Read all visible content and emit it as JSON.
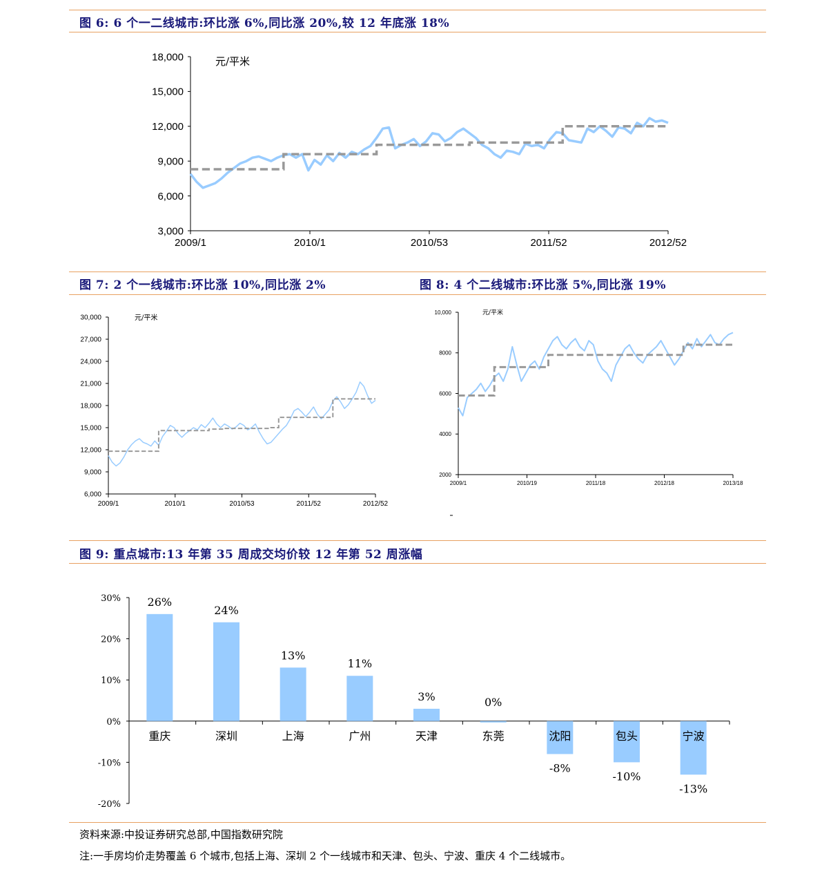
{
  "colors": {
    "series_line": "#99ccff",
    "avg_line": "#999999",
    "bar": "#99ccff",
    "title": "#1a1a7a",
    "rule": "#e8a060"
  },
  "fig6": {
    "title": "图 6: 6 个一二线城市:环比涨 6%,同比涨 20%,较 12 年底涨 18%",
    "unit": "元/平米",
    "chart_data": {
      "type": "line",
      "ylim": [
        3000,
        18000
      ],
      "yticks": [
        "18,000",
        "15,000",
        "12,000",
        "9,000",
        "6,000",
        "3,000"
      ],
      "xticks": [
        "2009/1",
        "2010/1",
        "2010/53",
        "2011/52",
        "2012/52"
      ],
      "series": [
        {
          "values": [
            7900,
            7200,
            6700,
            6900,
            7100,
            7500,
            8000,
            8400,
            8800,
            9000,
            9300,
            9400,
            9200,
            9000,
            9300,
            9500,
            9600,
            9300,
            9600,
            8200,
            9100,
            8700,
            9500,
            9000,
            9700,
            9300,
            9800,
            9600,
            10000,
            10300,
            11000,
            11800,
            11900,
            10100,
            10400,
            10600,
            10900,
            10300,
            10700,
            11400,
            11300,
            10700,
            11000,
            11500,
            11800,
            11400,
            11000,
            10400,
            10100,
            9600,
            9300,
            9900,
            9800,
            9600,
            10500,
            10300,
            10400,
            10100,
            10900,
            11500,
            11400,
            10800,
            10700,
            10600,
            11800,
            11500,
            12000,
            11600,
            11100,
            11900,
            11800,
            11400,
            12300,
            12000,
            12700,
            12400,
            12500,
            12300
          ]
        },
        {
          "values": [
            8300,
            8300,
            8300,
            8300,
            8300,
            8300,
            8300,
            8300,
            8300,
            8300,
            8300,
            8300,
            8300,
            8300,
            8300,
            9600,
            9600,
            9600,
            9600,
            9600,
            9600,
            9600,
            9600,
            9600,
            9600,
            9600,
            9600,
            9600,
            9600,
            9600,
            10400,
            10400,
            10400,
            10400,
            10400,
            10400,
            10400,
            10400,
            10400,
            10400,
            10400,
            10400,
            10400,
            10400,
            10400,
            10600,
            10600,
            10600,
            10600,
            10600,
            10600,
            10600,
            10600,
            10600,
            10600,
            10600,
            10600,
            10600,
            10600,
            10600,
            12000,
            12000,
            12000,
            12000,
            12000,
            12000,
            12000,
            12000,
            12000,
            12000,
            12000,
            12000,
            12000,
            12000,
            12000,
            12000,
            12000,
            12000
          ]
        }
      ]
    }
  },
  "fig7": {
    "title": "图 7: 2 个一线城市:环比涨 10%,同比涨 2%",
    "unit": "元/平米",
    "chart_data": {
      "type": "line",
      "ylim": [
        6000,
        30000
      ],
      "yticks": [
        "30,000",
        "27,000",
        "24,000",
        "21,000",
        "18,000",
        "15,000",
        "12,000",
        "9,000",
        "6,000"
      ],
      "xticks": [
        "2009/1",
        "2010/1",
        "2010/53",
        "2011/52",
        "2012/52"
      ],
      "series": [
        {
          "values": [
            11200,
            10300,
            9800,
            10200,
            11000,
            12000,
            12700,
            13200,
            13500,
            13000,
            12800,
            12500,
            13200,
            12600,
            13800,
            14500,
            15300,
            15000,
            14200,
            13700,
            14200,
            14600,
            15000,
            14700,
            15400,
            15000,
            15600,
            16300,
            15500,
            15000,
            15500,
            15200,
            14800,
            15100,
            15600,
            15300,
            14700,
            15000,
            15500,
            14400,
            13500,
            12800,
            13000,
            13600,
            14200,
            14800,
            15300,
            16200,
            17300,
            17600,
            17100,
            16500,
            17100,
            17800,
            16800,
            16200,
            16800,
            17400,
            18600,
            19200,
            18500,
            17600,
            18100,
            18900,
            19800,
            21200,
            20600,
            19300,
            18300,
            18700
          ]
        },
        {
          "values": [
            11800,
            11800,
            11800,
            11800,
            11800,
            11800,
            11800,
            11800,
            11800,
            11800,
            11800,
            11800,
            11800,
            14600,
            14600,
            14600,
            14600,
            14600,
            14600,
            14600,
            14600,
            14600,
            14600,
            14600,
            14600,
            14600,
            14800,
            14800,
            14800,
            14800,
            14900,
            14900,
            14900,
            14900,
            14900,
            14900,
            14900,
            14900,
            14900,
            14900,
            14900,
            14900,
            15000,
            15000,
            16400,
            16400,
            16400,
            16400,
            16400,
            16400,
            16400,
            16400,
            16400,
            16400,
            16400,
            16400,
            16400,
            16400,
            18900,
            18900,
            18900,
            18900,
            18900,
            18900,
            18900,
            18900,
            18900,
            18900,
            18900,
            18900
          ]
        }
      ]
    }
  },
  "fig8": {
    "title": "图 8: 4 个二线城市:环比涨 5%,同比涨 19%",
    "unit": "元/平米",
    "chart_data": {
      "type": "line",
      "ylim": [
        2000,
        10000
      ],
      "yticks": [
        "10,000",
        "8000",
        "6000",
        "4000",
        "2000"
      ],
      "xticks": [
        "2009/1",
        "2010/19",
        "2011/18",
        "2012/18",
        "2013/18"
      ],
      "series": [
        {
          "values": [
            5300,
            4900,
            5800,
            6000,
            6200,
            6500,
            6100,
            6400,
            6800,
            7000,
            6600,
            7200,
            8300,
            7400,
            6600,
            7000,
            7400,
            7600,
            7200,
            7800,
            8200,
            8600,
            8800,
            8400,
            8200,
            8500,
            8700,
            8300,
            8100,
            8600,
            8400,
            7600,
            7200,
            7000,
            6600,
            7400,
            7800,
            8200,
            8400,
            8000,
            7700,
            7500,
            7900,
            8100,
            8300,
            8600,
            8200,
            7800,
            7400,
            7700,
            8100,
            8500,
            8200,
            8700,
            8300,
            8600,
            8900,
            8500,
            8400,
            8700,
            8900,
            9000
          ]
        },
        {
          "values": [
            5900,
            5900,
            5900,
            5900,
            5900,
            5900,
            5900,
            5900,
            7300,
            7300,
            7300,
            7300,
            7300,
            7300,
            7300,
            7300,
            7300,
            7300,
            7300,
            7300,
            7900,
            7900,
            7900,
            7900,
            7900,
            7900,
            7900,
            7900,
            7900,
            7900,
            7900,
            7900,
            7900,
            7900,
            7900,
            7900,
            7900,
            7900,
            7900,
            7900,
            7900,
            7900,
            7900,
            7900,
            7900,
            7900,
            7900,
            7900,
            7900,
            7900,
            8400,
            8400,
            8400,
            8400,
            8400,
            8400,
            8400,
            8400,
            8400,
            8400,
            8400,
            8400
          ]
        }
      ]
    }
  },
  "fig9": {
    "title": "图 9: 重点城市:13 年第 35 周成交均价较 12 年第 52 周涨幅",
    "chart_data": {
      "type": "bar",
      "categories": [
        "重庆",
        "深圳",
        "上海",
        "广州",
        "天津",
        "东莞",
        "沈阳",
        "包头",
        "宁波"
      ],
      "values": [
        26,
        24,
        13,
        11,
        3,
        0,
        -8,
        -10,
        -13
      ],
      "value_labels": [
        "26%",
        "24%",
        "13%",
        "11%",
        "3%",
        "0%",
        "-8%",
        "-10%",
        "-13%"
      ],
      "ylim": [
        -20,
        30
      ],
      "yticks": [
        "30%",
        "20%",
        "10%",
        "0%",
        "-10%",
        "-20%"
      ]
    }
  },
  "source": "资料来源:中投证券研究总部,中国指数研究院",
  "note": "注:一手房均价走势覆盖 6 个城市,包括上海、深圳 2 个一线城市和天津、包头、宁波、重庆 4 个二线城市。"
}
